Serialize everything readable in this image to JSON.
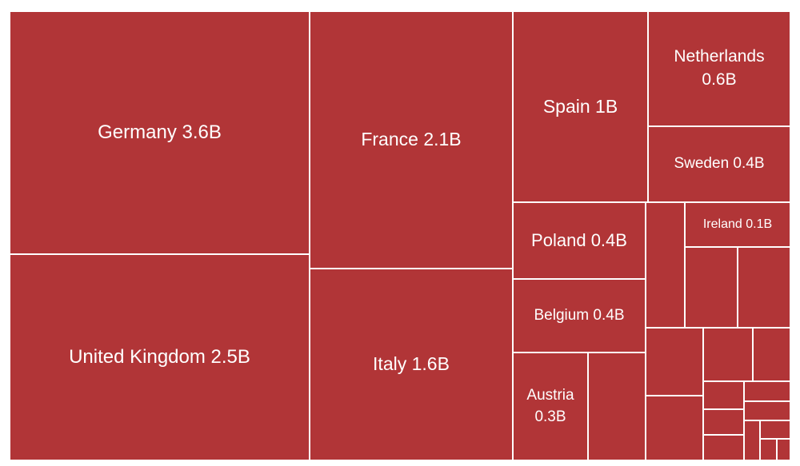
{
  "chart_data": {
    "type": "treemap",
    "title": "",
    "colors": {
      "fill": "#b13537",
      "border": "#ffffff",
      "label": "#ffffff"
    },
    "labelled": [
      {
        "name": "Germany",
        "value": 3.6,
        "value_label": "3.6B"
      },
      {
        "name": "United Kingdom",
        "value": 2.5,
        "value_label": "2.5B"
      },
      {
        "name": "France",
        "value": 2.1,
        "value_label": "2.1B"
      },
      {
        "name": "Italy",
        "value": 1.6,
        "value_label": "1.6B"
      },
      {
        "name": "Spain",
        "value": 1.0,
        "value_label": "1B"
      },
      {
        "name": "Netherlands",
        "value": 0.6,
        "value_label": "0.6B"
      },
      {
        "name": "Sweden",
        "value": 0.4,
        "value_label": "0.4B"
      },
      {
        "name": "Poland",
        "value": 0.4,
        "value_label": "0.4B"
      },
      {
        "name": "Belgium",
        "value": 0.4,
        "value_label": "0.4B"
      },
      {
        "name": "Austria",
        "value": 0.3,
        "value_label": "0.3B"
      },
      {
        "name": "Ireland",
        "value": 0.1,
        "value_label": "0.1B"
      }
    ],
    "unlabelled_count": 17
  }
}
